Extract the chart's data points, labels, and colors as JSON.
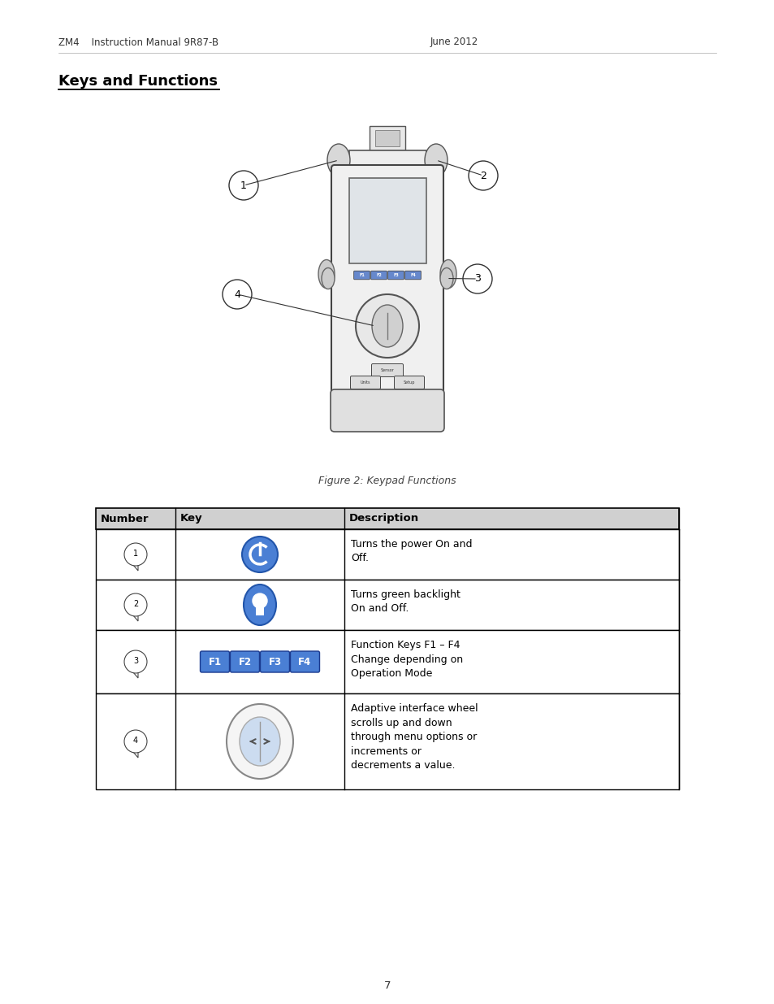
{
  "header_left": "ZM4    Instruction Manual 9R87-B",
  "header_right": "June 2012",
  "section_title": "Keys and Functions",
  "figure_caption": "Figure 2: Keypad Functions",
  "page_number": "7",
  "table_headers": [
    "Number",
    "Key",
    "Description"
  ],
  "table_rows": [
    {
      "number": "1",
      "description": "Turns the power On and\nOff."
    },
    {
      "number": "2",
      "description": "Turns green backlight\nOn and Off."
    },
    {
      "number": "3",
      "description": "Function Keys F1 – F4\nChange depending on\nOperation Mode"
    },
    {
      "number": "4",
      "description": "Adaptive interface wheel\nscrolls up and down\nthrough menu options or\nincrements or\ndecrements a value."
    }
  ],
  "bg_color": "#ffffff",
  "text_color": "#000000",
  "table_border_color": "#000000",
  "header_bg": "#d0d0d0",
  "button_blue_dark": "#3a6bbf",
  "button_blue_light": "#5b8dd9",
  "button_blue_gradient": "#4a7fd4"
}
